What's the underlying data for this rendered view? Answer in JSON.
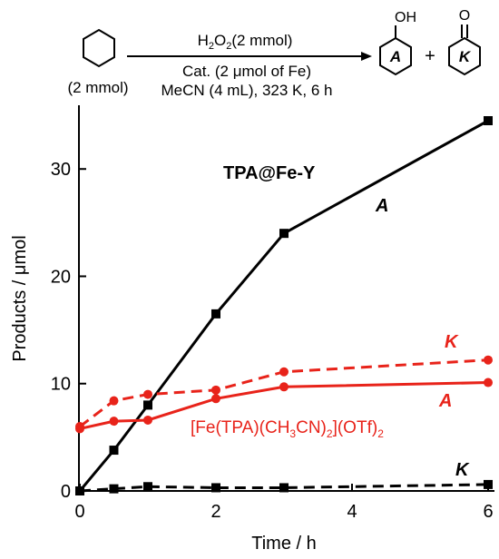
{
  "scheme": {
    "reactant_amount": "(2 mmol)",
    "oxidant_main": "H",
    "oxidant_sub2": "2",
    "oxidant_o": "O",
    "oxidant_sub2b": "2",
    "oxidant_amount": "(2 mmol)",
    "catalyst": "Cat. (2 μmol of Fe)",
    "conditions": "MeCN (4 mL), 323 K, 6 h",
    "product_a_group": "OH",
    "product_a_label": "A",
    "plus": "+",
    "product_k_group": "O",
    "product_k_label": "K"
  },
  "chart_data": {
    "type": "line",
    "xlabel": "Time / h",
    "ylabel": "Products / μmol",
    "xlim": [
      0,
      6.1
    ],
    "ylim": [
      0,
      35
    ],
    "xticks": [
      0,
      2,
      4,
      6
    ],
    "yticks": [
      0,
      10,
      20,
      30
    ],
    "grid": false,
    "colors": {
      "black": "#000000",
      "red": "#e8231a"
    },
    "series": [
      {
        "name": "A",
        "catalyst": "TPA@Fe-Y",
        "color": "#000000",
        "marker": "square",
        "dash": false,
        "x": [
          0,
          0.5,
          1,
          2,
          3,
          6
        ],
        "y": [
          0,
          3.8,
          8.0,
          16.5,
          24.0,
          34.5
        ]
      },
      {
        "name": "K",
        "catalyst": "TPA@Fe-Y",
        "color": "#000000",
        "marker": "square",
        "dash": true,
        "x": [
          0,
          0.5,
          1,
          2,
          3,
          6
        ],
        "y": [
          0,
          0.2,
          0.4,
          0.3,
          0.3,
          0.6
        ]
      },
      {
        "name": "A",
        "catalyst": "[Fe(TPA)(CH3CN)2](OTf)2",
        "color": "#e8231a",
        "marker": "circle",
        "dash": false,
        "x": [
          0,
          0.5,
          1,
          2,
          3,
          6
        ],
        "y": [
          5.8,
          6.5,
          6.6,
          8.6,
          9.7,
          10.1
        ]
      },
      {
        "name": "K",
        "catalyst": "[Fe(TPA)(CH3CN)2](OTf)2",
        "color": "#e8231a",
        "marker": "circle",
        "dash": true,
        "x": [
          0,
          0.5,
          1,
          2,
          3,
          6
        ],
        "y": [
          6.0,
          8.4,
          9.0,
          9.4,
          11.1,
          12.2
        ]
      }
    ],
    "annotations": {
      "tpa_fey": "TPA@Fe-Y",
      "fe_tpa_a": "[Fe(TPA)(CH",
      "fe_tpa_b": "3",
      "fe_tpa_c": "CN)",
      "fe_tpa_d": "2",
      "fe_tpa_e": "](OTf)",
      "fe_tpa_f": "2",
      "label_a_black": "A",
      "label_k_black": "K",
      "label_a_red": "A",
      "label_k_red": "K"
    }
  }
}
